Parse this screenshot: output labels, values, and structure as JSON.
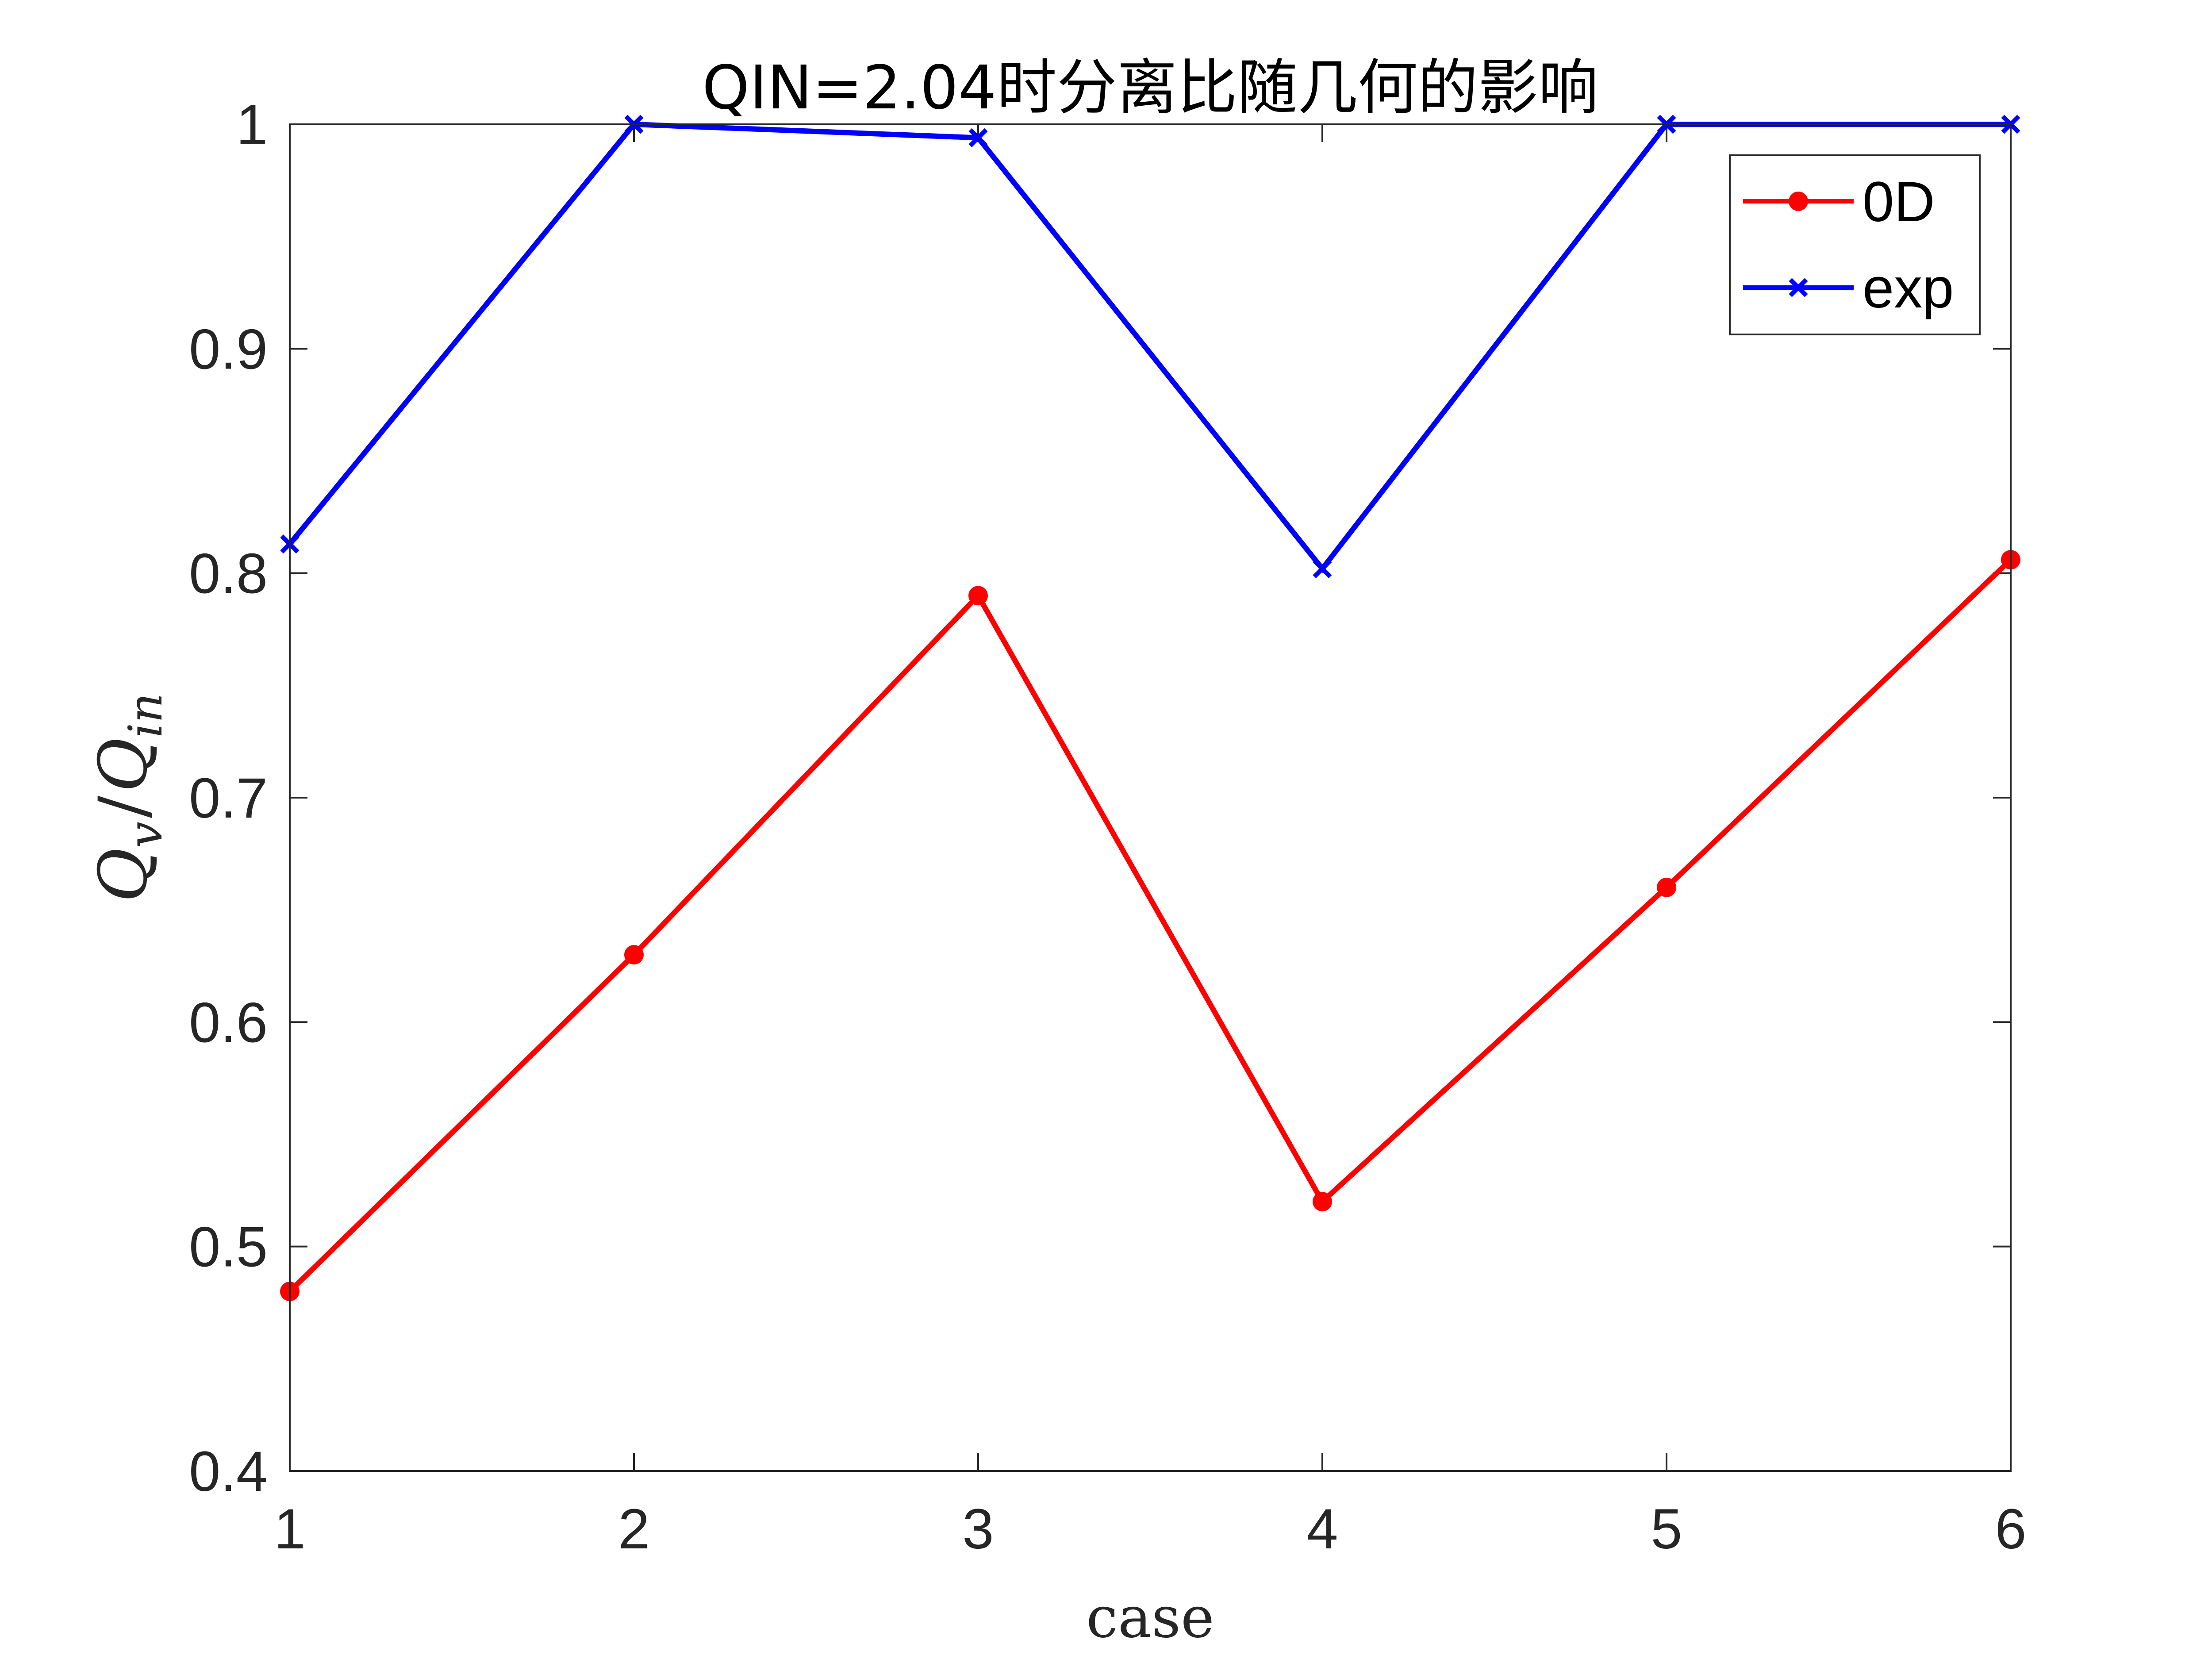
{
  "chart_data": {
    "type": "line",
    "title": "QIN=2.04时分离比随几何的影响",
    "xlabel": "case",
    "ylabel": "Q_v/Q_in",
    "ylabel_display": {
      "main1": "Q",
      "sub1": "v",
      "slash": "/",
      "main2": "Q",
      "sub2": "in"
    },
    "x": [
      1,
      2,
      3,
      4,
      5,
      6
    ],
    "xticks": [
      "1",
      "2",
      "3",
      "4",
      "5",
      "6"
    ],
    "yticks": [
      "0.4",
      "0.5",
      "0.6",
      "0.7",
      "0.8",
      "0.9",
      "1"
    ],
    "xlim": [
      1,
      6
    ],
    "ylim": [
      0.4,
      1
    ],
    "grid": false,
    "legend_position": "top-right",
    "series": [
      {
        "name": "0D",
        "color": "#ff0000",
        "marker": "circle",
        "values": [
          0.48,
          0.63,
          0.79,
          0.52,
          0.66,
          0.806
        ]
      },
      {
        "name": "exp",
        "color": "#0000ff",
        "marker": "x",
        "values": [
          0.813,
          1.0,
          0.994,
          0.802,
          1.0,
          1.0
        ]
      }
    ]
  }
}
